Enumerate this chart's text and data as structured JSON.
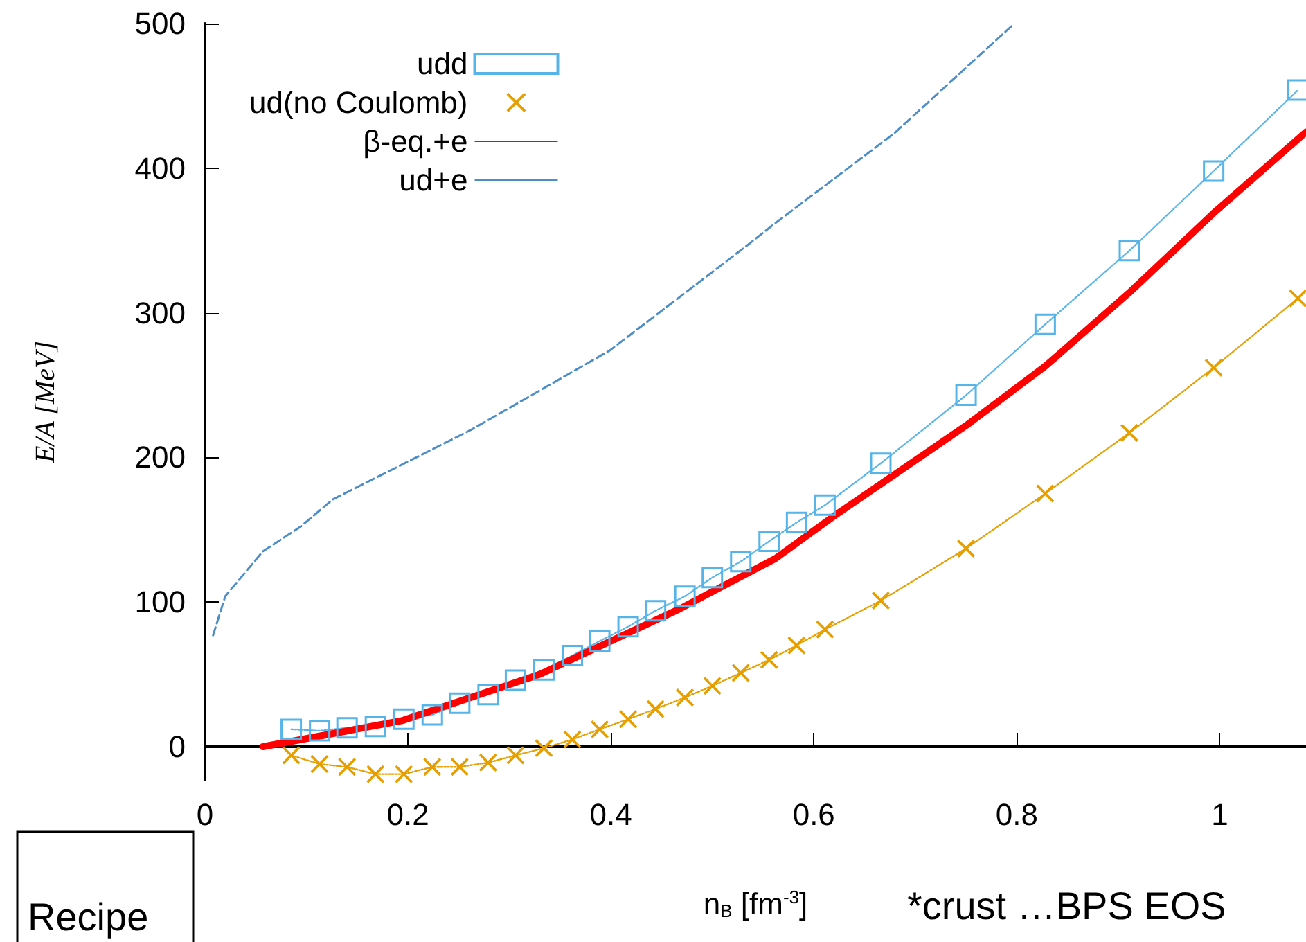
{
  "chart_data": {
    "type": "line",
    "xlabel": "n$_{B}$ [fm$^{-3}$]",
    "ylabel": "E/A [MeV]",
    "xlim": [
      0,
      1.085
    ],
    "ylim": [
      -23,
      500
    ],
    "xticks": [
      0,
      0.2,
      0.4,
      0.6,
      0.8,
      1
    ],
    "yticks": [
      0,
      100,
      200,
      300,
      400,
      500
    ],
    "grid": false,
    "legend": "top",
    "annotations": [
      "Recipe",
      "*crust …BPS EOS"
    ],
    "series": [
      {
        "name": "udd",
        "marker": "square",
        "line_style": "dotted",
        "color": "#56b4e9",
        "x": [
          0.085,
          0.113,
          0.14,
          0.168,
          0.196,
          0.224,
          0.251,
          0.279,
          0.306,
          0.334,
          0.362,
          0.389,
          0.417,
          0.444,
          0.473,
          0.5,
          0.528,
          0.556,
          0.583,
          0.611,
          0.666,
          0.75,
          0.828,
          0.911,
          0.994,
          1.077
        ],
        "values": [
          12,
          11,
          13,
          14,
          19,
          22,
          30,
          36,
          46,
          53,
          63,
          73,
          83,
          94,
          104,
          117,
          128,
          142,
          155,
          167,
          196,
          243,
          292,
          343,
          398,
          454
        ]
      },
      {
        "name": "ud(no Coulomb)",
        "marker": "cross",
        "line_style": "dotted",
        "color": "#e69f00",
        "x": [
          0.085,
          0.113,
          0.14,
          0.168,
          0.196,
          0.224,
          0.251,
          0.279,
          0.306,
          0.334,
          0.362,
          0.389,
          0.417,
          0.444,
          0.473,
          0.5,
          0.528,
          0.556,
          0.583,
          0.611,
          0.666,
          0.75,
          0.828,
          0.911,
          0.994,
          1.077
        ],
        "values": [
          -6,
          -12,
          -14,
          -19,
          -19,
          -14,
          -14,
          -11,
          -6,
          -1,
          5,
          12,
          19,
          26,
          34,
          42,
          51,
          60,
          70,
          81,
          101,
          137,
          175,
          217,
          262,
          310
        ]
      },
      {
        "name": "β-eq.+e",
        "marker": "none",
        "line_style": "solid",
        "color": "#ff0000",
        "x": [
          0.057,
          0.194,
          0.33,
          0.467,
          0.562,
          0.621,
          0.75,
          0.828,
          0.911,
          0.994,
          1.085
        ],
        "values": [
          0,
          18,
          50,
          95,
          130,
          160,
          222,
          263,
          314,
          369,
          425
        ]
      },
      {
        "name": "ud+e",
        "marker": "none",
        "line_style": "dashed",
        "color": "#4e8ec8",
        "x": [
          0.008,
          0.02,
          0.057,
          0.094,
          0.126,
          0.262,
          0.399,
          0.535,
          0.562,
          0.679,
          0.796
        ],
        "values": [
          77,
          104,
          135,
          152,
          171,
          219,
          274,
          347,
          362,
          424,
          499
        ]
      }
    ]
  }
}
